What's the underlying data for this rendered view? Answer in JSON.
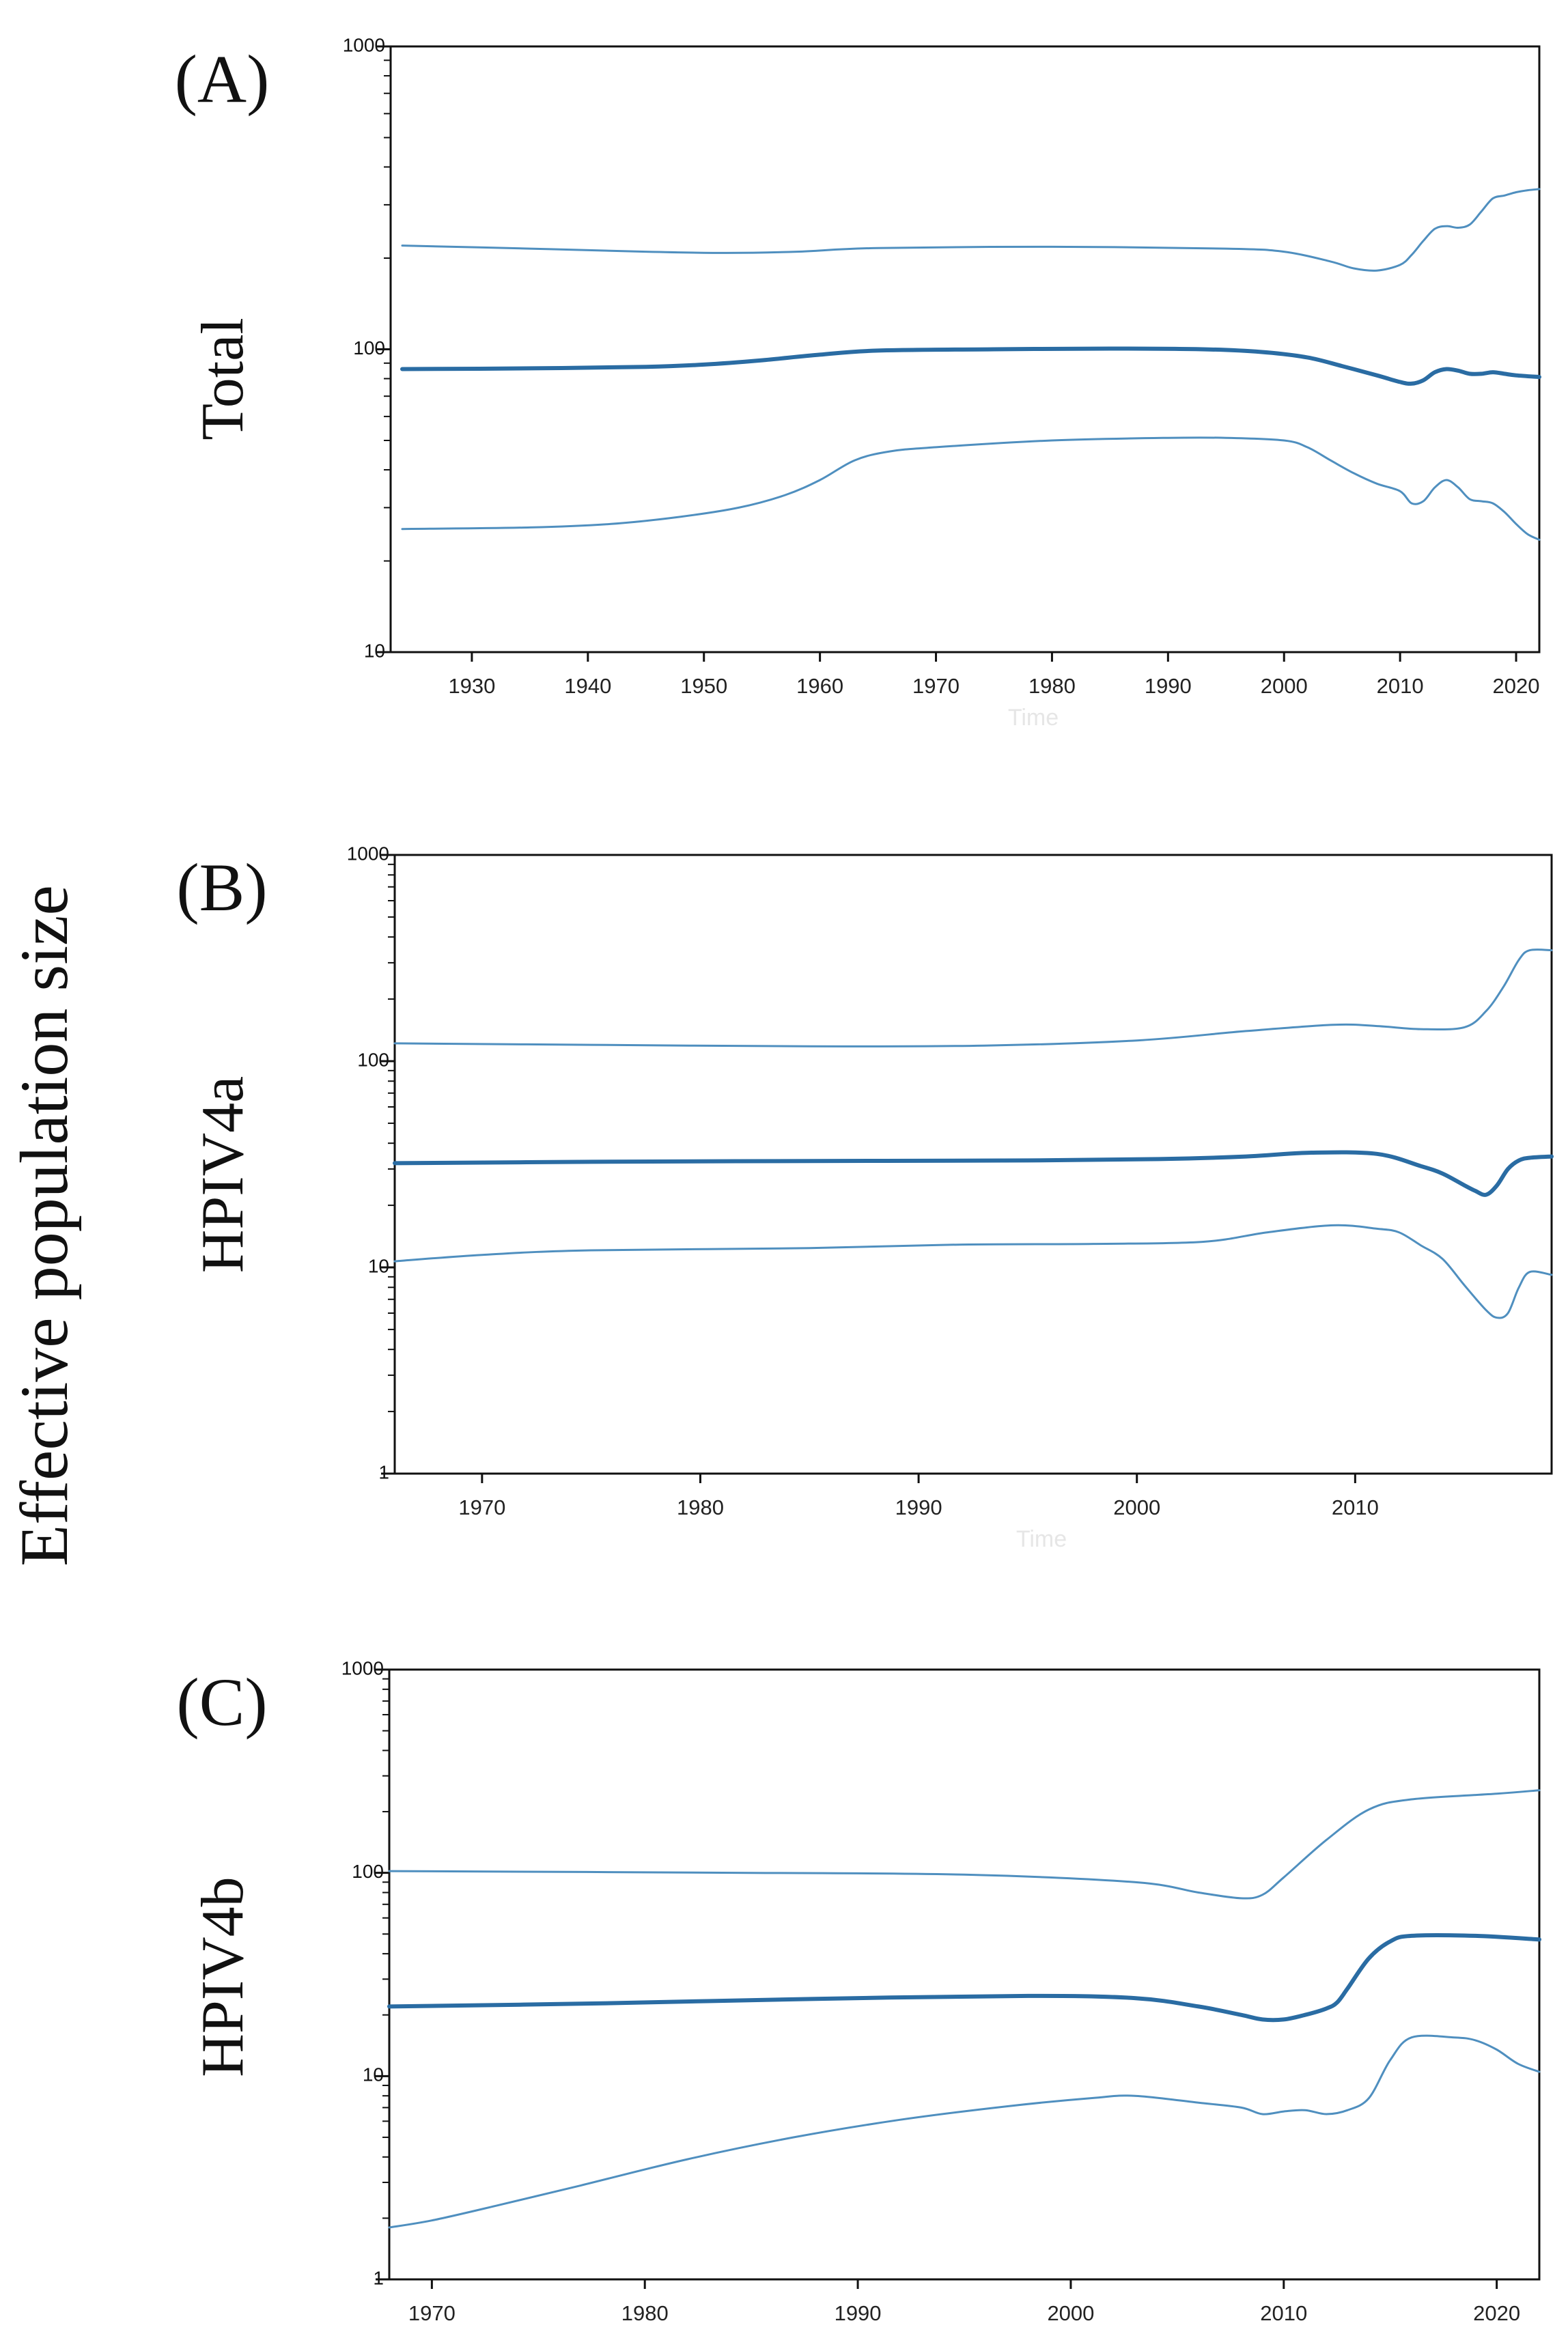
{
  "figure": {
    "y_axis_title": "Effective population size"
  },
  "colors": {
    "median": "#2a6ca3",
    "hpd": "#4f8fbf",
    "axis": "#111111",
    "faint_label": "#e6e6e6"
  },
  "chart_data": [
    {
      "type": "line",
      "panel_label": "(A)",
      "row_label": "Total",
      "xlabel": "Time",
      "log_y": true,
      "ylim": [
        10,
        1000
      ],
      "y_ticks": [
        "10",
        "100",
        "1000"
      ],
      "xlim": [
        1923,
        2022
      ],
      "x_ticks": [
        "1930",
        "1940",
        "1950",
        "1960",
        "1970",
        "1980",
        "1990",
        "2000",
        "2010",
        "2020"
      ],
      "series": [
        {
          "role": "upper",
          "x": [
            1924,
            1935,
            1945,
            1952,
            1958,
            1965,
            1980,
            1995,
            2000,
            2004,
            2006,
            2008,
            2010,
            2011,
            2012,
            2013,
            2014,
            2015,
            2016,
            2017,
            2018,
            2019,
            2020,
            2021,
            2022
          ],
          "y": [
            220,
            215,
            210,
            208,
            210,
            216,
            218,
            215,
            210,
            195,
            185,
            182,
            190,
            205,
            228,
            250,
            255,
            252,
            258,
            285,
            315,
            322,
            330,
            335,
            338
          ]
        },
        {
          "role": "median",
          "x": [
            1924,
            1935,
            1945,
            1950,
            1955,
            1960,
            1965,
            1975,
            1985,
            1993,
            1998,
            2002,
            2005,
            2008,
            2010,
            2011,
            2012,
            2013,
            2014,
            2015,
            2016,
            2017,
            2018,
            2019,
            2020,
            2022
          ],
          "y": [
            86,
            86.5,
            87.5,
            89,
            92,
            96,
            99,
            100,
            100.5,
            100,
            98,
            94,
            88,
            82,
            78,
            77,
            79,
            84,
            86,
            85,
            83,
            83,
            84,
            83,
            82,
            81
          ]
        },
        {
          "role": "lower",
          "x": [
            1924,
            1935,
            1942,
            1948,
            1953,
            1957,
            1960,
            1963,
            1966,
            1970,
            1980,
            1990,
            1995,
            2000,
            2002,
            2004,
            2006,
            2008,
            2010,
            2011,
            2012,
            2013,
            2014,
            2015,
            2016,
            2017,
            2018,
            2019,
            2020,
            2021,
            2022
          ],
          "y": [
            25.5,
            25.8,
            26.5,
            28,
            30,
            33,
            37,
            43,
            46,
            47.5,
            50,
            51,
            51,
            50,
            47.5,
            43,
            39,
            36,
            34,
            31,
            31.5,
            35,
            37,
            35,
            32,
            31.5,
            31,
            29,
            26.5,
            24.5,
            23.5
          ]
        }
      ]
    },
    {
      "type": "line",
      "panel_label": "(B)",
      "row_label": "HPIV4a",
      "xlabel": "Time",
      "log_y": true,
      "ylim": [
        1,
        1000
      ],
      "y_ticks": [
        "1",
        "10",
        "100",
        "1000"
      ],
      "xlim": [
        1966,
        2019
      ],
      "x_ticks": [
        "1970",
        "1980",
        "1990",
        "2000",
        "2010"
      ],
      "series": [
        {
          "role": "upper",
          "x": [
            1966,
            1975,
            1985,
            1993,
            2000,
            2005,
            2009,
            2011,
            2013,
            2015,
            2016,
            2016.8,
            2017.5,
            2018,
            2019
          ],
          "y": [
            122,
            120,
            118,
            119,
            126,
            140,
            150,
            148,
            143,
            146,
            175,
            230,
            310,
            345,
            345
          ]
        },
        {
          "role": "median",
          "x": [
            1966,
            1975,
            1985,
            1995,
            2001,
            2005,
            2008,
            2011,
            2013,
            2014,
            2015,
            2015.5,
            2016,
            2016.5,
            2017,
            2017.5,
            2018,
            2019
          ],
          "y": [
            32,
            32.5,
            32.8,
            33,
            33.5,
            34.5,
            36,
            35.5,
            31,
            28.5,
            25,
            23.5,
            22.5,
            25,
            30,
            33,
            34,
            34.5
          ]
        },
        {
          "role": "lower",
          "x": [
            1966,
            1970,
            1975,
            1985,
            1992,
            1998,
            2003,
            2006,
            2009,
            2011,
            2012,
            2013,
            2014,
            2015,
            2016,
            2016.5,
            2017,
            2017.5,
            2018,
            2019
          ],
          "y": [
            10.7,
            11.5,
            12.1,
            12.4,
            12.9,
            13,
            13.3,
            14.8,
            16,
            15.4,
            14.8,
            12.8,
            11,
            8.2,
            6.2,
            5.7,
            6,
            8,
            9.5,
            9.2
          ]
        }
      ]
    },
    {
      "type": "line",
      "panel_label": "(C)",
      "row_label": "HPIV4b",
      "xlabel": "",
      "log_y": true,
      "ylim": [
        1,
        1000
      ],
      "y_ticks": [
        "1",
        "10",
        "100",
        "1000"
      ],
      "xlim": [
        1968,
        2022
      ],
      "x_ticks": [
        "1970",
        "1980",
        "1990",
        "2000",
        "2010",
        "2020"
      ],
      "series": [
        {
          "role": "upper",
          "x": [
            1968,
            1985,
            1995,
            2003,
            2006,
            2008,
            2009,
            2010,
            2012,
            2014,
            2016,
            2020,
            2022
          ],
          "y": [
            102,
            100,
            98,
            90,
            80,
            75,
            78,
            95,
            145,
            205,
            230,
            245,
            255
          ]
        },
        {
          "role": "median",
          "x": [
            1968,
            1978,
            1988,
            1998,
            2003,
            2006,
            2008,
            2009,
            2010,
            2011,
            2012,
            2012.5,
            2013,
            2014,
            2015,
            2016,
            2019,
            2022
          ],
          "y": [
            22,
            22.8,
            24,
            24.8,
            24.2,
            22,
            20,
            19,
            19,
            20,
            21.5,
            23,
            27,
            38,
            46,
            49,
            49,
            47
          ]
        },
        {
          "role": "lower",
          "x": [
            1968,
            1970,
            1973,
            1977,
            1982,
            1987,
            1992,
            1997,
            2001,
            2003,
            2006,
            2008,
            2009,
            2010,
            2011,
            2012,
            2013,
            2014,
            2015,
            2016,
            2018,
            2019,
            2020,
            2021,
            2022
          ],
          "y": [
            1.8,
            1.95,
            2.3,
            2.9,
            3.9,
            5,
            6.1,
            7.1,
            7.8,
            8,
            7.4,
            7,
            6.5,
            6.7,
            6.8,
            6.5,
            6.8,
            7.8,
            12,
            15.5,
            15.5,
            15,
            13.5,
            11.5,
            10.5
          ]
        }
      ]
    }
  ]
}
